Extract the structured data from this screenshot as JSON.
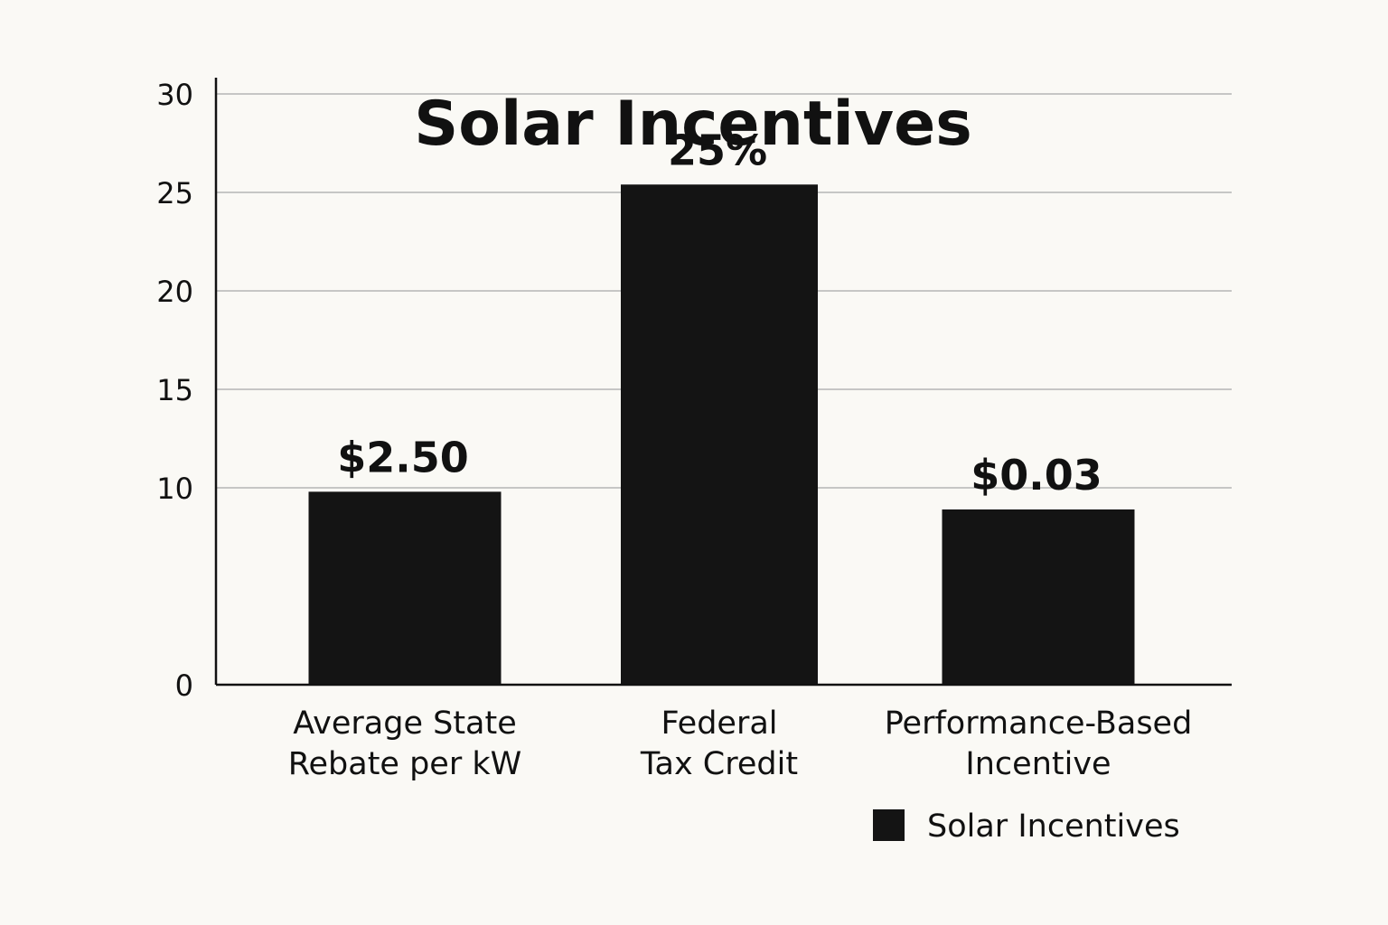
{
  "chart_data": {
    "type": "bar",
    "title": "Solar Incentives",
    "categories": [
      [
        "Average State",
        "Rebate per kW"
      ],
      [
        "Federal",
        "Tax Credit"
      ],
      [
        "Performance-Based",
        "Incentive"
      ]
    ],
    "series": [
      {
        "name": "Solar Incentives",
        "values": [
          9.8,
          25.4,
          8.9
        ],
        "data_labels": [
          "$2.50",
          "25%",
          "$0.03"
        ]
      }
    ],
    "xlabel": "",
    "ylabel": "",
    "ylim": [
      0,
      30
    ],
    "yticks": [
      "0",
      "10",
      "15",
      "20",
      "25",
      "30"
    ],
    "grid": true,
    "legend": "bottom-right",
    "colors": {
      "bar": "#141414",
      "grid": "#b5b5b5",
      "axis": "#111111",
      "background": "#faf9f5"
    }
  }
}
